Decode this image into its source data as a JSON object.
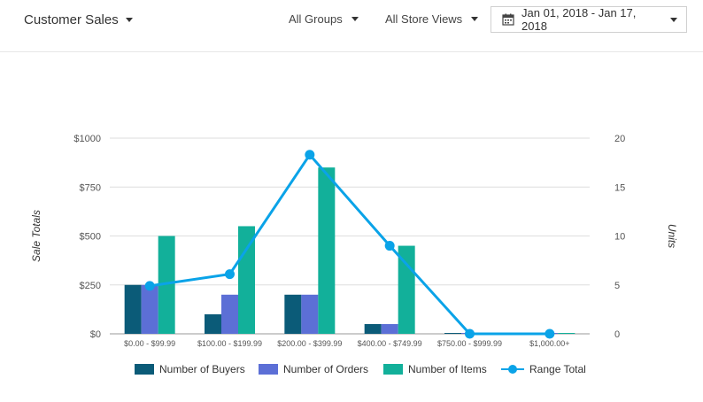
{
  "header": {
    "report_label": "Customer Sales",
    "groups_label": "All Groups",
    "stores_label": "All Store Views",
    "date_range": "Jan 01, 2018 - Jan 17, 2018",
    "calendar_icon": "calendar-icon"
  },
  "chart_data": {
    "type": "bar",
    "categories": [
      "$0.00 - $99.99",
      "$100.00 - $199.99",
      "$200.00 - $399.99",
      "$400.00 - $749.99",
      "$750.00 - $999.99",
      "$1,000.00+"
    ],
    "series": [
      {
        "name": "Number of Buyers",
        "axis": "right",
        "type": "bar",
        "color": "#0b5b78",
        "values": [
          5,
          2,
          4,
          1,
          0,
          0
        ]
      },
      {
        "name": "Number of Orders",
        "axis": "right",
        "type": "bar",
        "color": "#5c6fd6",
        "values": [
          5,
          4,
          4,
          1,
          0,
          0
        ]
      },
      {
        "name": "Number of Items",
        "axis": "right",
        "type": "bar",
        "color": "#12b09a",
        "values": [
          10,
          11,
          17,
          9,
          0,
          0
        ]
      },
      {
        "name": "Range Total",
        "axis": "left",
        "type": "line",
        "color": "#0aa3e8",
        "values": [
          245,
          305,
          915,
          450,
          0,
          0
        ]
      }
    ],
    "ylabel_left": "Sale Totals",
    "ylabel_right": "Units",
    "left_ticks": [
      "$0",
      "$250",
      "$500",
      "$750",
      "$1000"
    ],
    "right_ticks": [
      "0",
      "5",
      "10",
      "15",
      "20"
    ],
    "ylim_left": [
      0,
      1000
    ],
    "ylim_right": [
      0,
      20
    ],
    "grid": true,
    "legend": "bottom"
  }
}
